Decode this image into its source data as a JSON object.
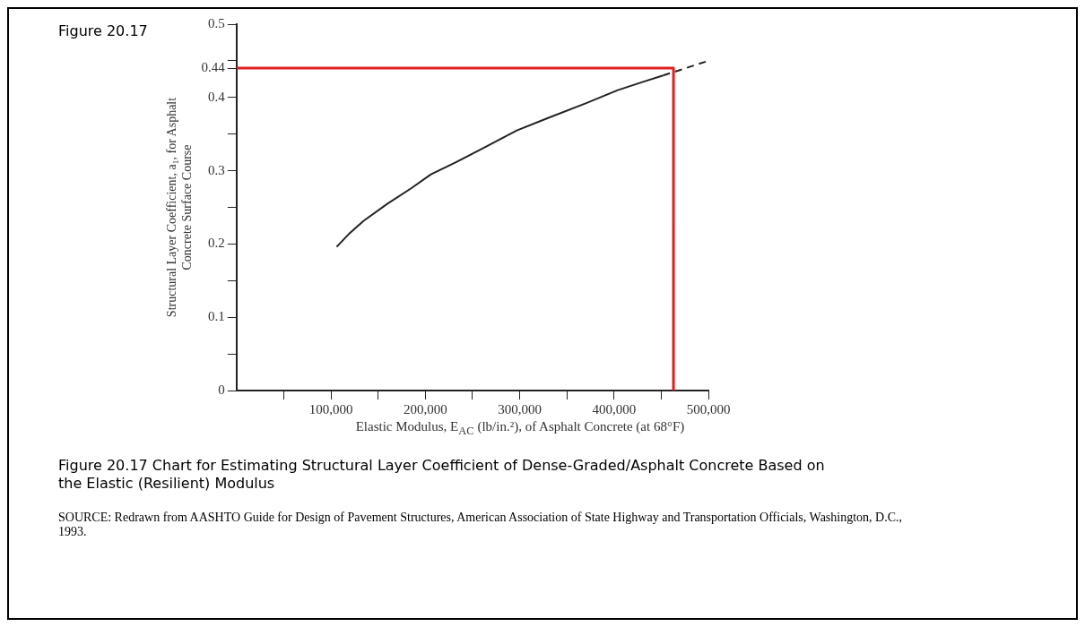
{
  "chart_data": {
    "type": "line",
    "title": "Figure 20.17",
    "xlabel": "Elastic Modulus, E$_{AC}$ (lb/in.²), of Asphalt Concrete (at 68°F)",
    "ylabel": "Structural Layer Coefficient, a₁, for Asphalt\nConcrete Surface Course",
    "xlim": [
      0,
      500000
    ],
    "ylim": [
      0,
      0.5
    ],
    "xticks": [
      {
        "value": 50000,
        "label": null
      },
      {
        "value": 100000,
        "label": "100,000"
      },
      {
        "value": 150000,
        "label": null
      },
      {
        "value": 200000,
        "label": "200,000"
      },
      {
        "value": 250000,
        "label": null
      },
      {
        "value": 300000,
        "label": "300,000"
      },
      {
        "value": 350000,
        "label": null
      },
      {
        "value": 400000,
        "label": "400,000"
      },
      {
        "value": 450000,
        "label": null
      },
      {
        "value": 500000,
        "label": "500,000"
      }
    ],
    "yticks": [
      0,
      {
        "value": 0.05,
        "label": null
      },
      0.1,
      {
        "value": 0.15,
        "label": null
      },
      0.2,
      {
        "value": 0.25,
        "label": null
      },
      0.3,
      {
        "value": 0.35,
        "label": null
      },
      0.4,
      0.44,
      {
        "value": 0.45,
        "label": null
      },
      0.5
    ],
    "grid": false,
    "legend": false,
    "marker": "none",
    "series": [
      {
        "type": "line",
        "color": "#222222",
        "line_style": "solid",
        "x": [
          106000,
          120000,
          135000,
          160000,
          185000,
          206000,
          230000,
          260000,
          297000,
          330000,
          370000,
          404000,
          430000,
          452000
        ],
        "values": [
          0.196,
          0.215,
          0.232,
          0.255,
          0.276,
          0.295,
          0.31,
          0.33,
          0.355,
          0.372,
          0.392,
          0.41,
          0.421,
          0.43
        ]
      },
      {
        "type": "line",
        "color": "#222222",
        "line_style": "dashed",
        "x": [
          452000,
          500000
        ],
        "values": [
          0.43,
          0.45
        ]
      },
      {
        "type": "line",
        "color": "#e02020",
        "line_style": "solid",
        "x": [
          0,
          463000,
          463000
        ],
        "values": [
          0.44,
          0.44,
          0
        ]
      }
    ],
    "annotations": [
      "Figure 20.17   Chart for Estimating Structural Layer Coefficient of Dense-Graded/Asphalt Concrete Based on the Elastic (Resilient) Modulus",
      "SOURCE:   Redrawn from AASHTO Guide for Design of Pavement Structures, American Association of State Highway and Transportation Officials, Washington, D.C., 1993."
    ]
  }
}
